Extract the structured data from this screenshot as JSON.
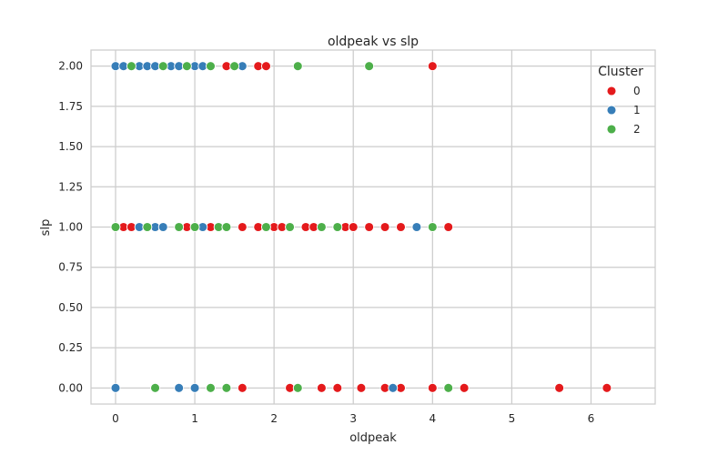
{
  "chart_data": {
    "type": "scatter",
    "title": "oldpeak vs slp",
    "xlabel": "oldpeak",
    "ylabel": "slp",
    "xlim": [
      -0.31,
      6.81
    ],
    "ylim": [
      -0.1,
      2.1
    ],
    "xticks": [
      0,
      1,
      2,
      3,
      4,
      5,
      6
    ],
    "xtick_labels": [
      "0",
      "1",
      "2",
      "3",
      "4",
      "5",
      "6"
    ],
    "yticks": [
      0,
      0.25,
      0.5,
      0.75,
      1.0,
      1.25,
      1.5,
      1.75,
      2.0
    ],
    "ytick_labels": [
      "0.00",
      "0.25",
      "0.50",
      "0.75",
      "1.00",
      "1.25",
      "1.50",
      "1.75",
      "2.00"
    ],
    "grid": true,
    "legend": {
      "title": "Cluster",
      "position": "top-right",
      "entries": [
        {
          "label": "0",
          "color": "#e41a1c"
        },
        {
          "label": "1",
          "color": "#377eb8"
        },
        {
          "label": "2",
          "color": "#4daf4a"
        }
      ]
    },
    "series": [
      {
        "name": "0",
        "color": "#e41a1c",
        "points": [
          [
            1.4,
            2
          ],
          [
            1.8,
            2
          ],
          [
            1.9,
            2
          ],
          [
            4.0,
            2
          ],
          [
            0.1,
            1
          ],
          [
            0.2,
            1
          ],
          [
            0.9,
            1
          ],
          [
            1.2,
            1
          ],
          [
            1.6,
            1
          ],
          [
            1.8,
            1
          ],
          [
            2.0,
            1
          ],
          [
            2.1,
            1
          ],
          [
            2.4,
            1
          ],
          [
            2.5,
            1
          ],
          [
            2.9,
            1
          ],
          [
            3.0,
            1
          ],
          [
            3.2,
            1
          ],
          [
            3.4,
            1
          ],
          [
            3.6,
            1
          ],
          [
            4.2,
            1
          ],
          [
            1.6,
            0
          ],
          [
            2.2,
            0
          ],
          [
            2.6,
            0
          ],
          [
            2.8,
            0
          ],
          [
            3.1,
            0
          ],
          [
            3.4,
            0
          ],
          [
            3.6,
            0
          ],
          [
            4.0,
            0
          ],
          [
            4.4,
            0
          ],
          [
            5.6,
            0
          ],
          [
            6.2,
            0
          ]
        ]
      },
      {
        "name": "1",
        "color": "#377eb8",
        "points": [
          [
            0.0,
            2
          ],
          [
            0.1,
            2
          ],
          [
            0.3,
            2
          ],
          [
            0.4,
            2
          ],
          [
            0.5,
            2
          ],
          [
            0.7,
            2
          ],
          [
            0.8,
            2
          ],
          [
            1.0,
            2
          ],
          [
            1.1,
            2
          ],
          [
            1.6,
            2
          ],
          [
            0.3,
            1
          ],
          [
            0.5,
            1
          ],
          [
            0.6,
            1
          ],
          [
            1.1,
            1
          ],
          [
            3.8,
            1
          ],
          [
            0.0,
            0
          ],
          [
            0.8,
            0
          ],
          [
            1.0,
            0
          ],
          [
            3.5,
            0
          ]
        ]
      },
      {
        "name": "2",
        "color": "#4daf4a",
        "points": [
          [
            0.2,
            2
          ],
          [
            0.6,
            2
          ],
          [
            0.9,
            2
          ],
          [
            1.2,
            2
          ],
          [
            1.5,
            2
          ],
          [
            2.3,
            2
          ],
          [
            3.2,
            2
          ],
          [
            0.0,
            1
          ],
          [
            0.4,
            1
          ],
          [
            0.8,
            1
          ],
          [
            1.0,
            1
          ],
          [
            1.3,
            1
          ],
          [
            1.4,
            1
          ],
          [
            1.9,
            1
          ],
          [
            2.2,
            1
          ],
          [
            2.6,
            1
          ],
          [
            2.8,
            1
          ],
          [
            4.0,
            1
          ],
          [
            0.5,
            0
          ],
          [
            1.2,
            0
          ],
          [
            1.4,
            0
          ],
          [
            2.3,
            0
          ],
          [
            4.2,
            0
          ]
        ]
      }
    ]
  }
}
